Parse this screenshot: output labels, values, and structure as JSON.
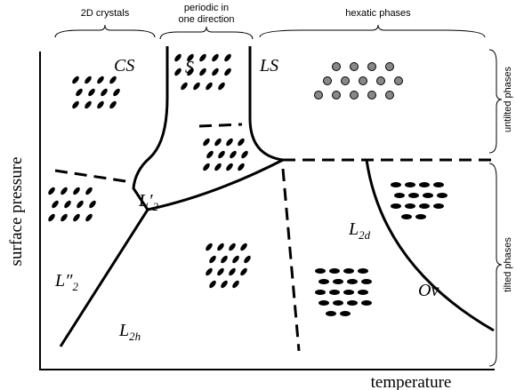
{
  "header": {
    "groups": [
      "2D crystals",
      [
        "periodic in",
        "one direction"
      ],
      "hexatic phases"
    ],
    "side": [
      "untilted phases",
      "tilted phases"
    ]
  },
  "axes": {
    "y": "surface pressure",
    "x": "temperature"
  },
  "phases": [
    {
      "symbol": "CS"
    },
    {
      "symbol": "S"
    },
    {
      "symbol": "LS"
    },
    {
      "symbol": "L′",
      "sub": "2"
    },
    {
      "symbol": "L″",
      "sub": "2"
    },
    {
      "symbol": "L",
      "sub": "2h"
    },
    {
      "symbol": "L",
      "sub": "2d"
    },
    {
      "symbol": "Ov"
    }
  ]
}
